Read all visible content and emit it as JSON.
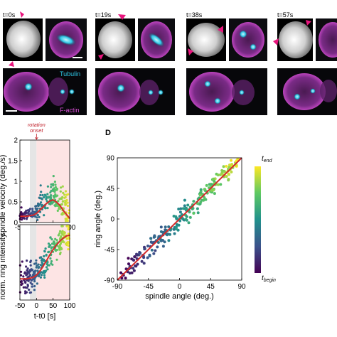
{
  "microscopy": {
    "timepoints": [
      {
        "label": "t=0s"
      },
      {
        "label": "t=19s"
      },
      {
        "label": "t=38s"
      },
      {
        "label": "t=57s"
      }
    ],
    "channels": [
      {
        "label": "Tubulin",
        "color": "#2ec8e6"
      },
      {
        "label": "F-actin",
        "color": "#d94fd6"
      }
    ],
    "arrow_color": "#e8157d"
  },
  "chart_data": [
    {
      "type": "scatter",
      "id": "spindle-velocity",
      "ylabel": "spindle velocity (deg./s)",
      "annotation": {
        "text": "rotation onset",
        "x": 0
      },
      "xlim": [
        -50,
        100
      ],
      "ylim": [
        0,
        2
      ],
      "xticks": [
        -50,
        0,
        50,
        100
      ],
      "yticks": [
        0,
        0.5,
        1,
        1.5,
        2
      ],
      "ytick_labels": [
        "0",
        "0.5",
        "1",
        "1.5",
        "2"
      ],
      "pre_shade_range": [
        -20,
        0
      ],
      "post_shade_range": [
        0,
        100
      ],
      "fit_line": {
        "x": [
          -50,
          -30,
          -10,
          0,
          10,
          20,
          30,
          40,
          50,
          60,
          70,
          80,
          90,
          100
        ],
        "y": [
          0.15,
          0.15,
          0.18,
          0.22,
          0.3,
          0.38,
          0.46,
          0.52,
          0.55,
          0.5,
          0.42,
          0.3,
          0.2,
          0.1
        ]
      }
    },
    {
      "type": "scatter",
      "id": "ring-intensity",
      "ylabel": "norm. ring intensity",
      "xlabel": "t-t0 [s]",
      "xlim": [
        -50,
        100
      ],
      "ylim": [
        0,
        1
      ],
      "xticks": [
        -50,
        0,
        50,
        100
      ],
      "pre_shade_range": [
        -20,
        0
      ],
      "post_shade_range": [
        0,
        100
      ],
      "fit_line": {
        "x": [
          -50,
          -30,
          -10,
          0,
          10,
          20,
          30,
          40,
          50,
          60,
          70,
          80,
          90,
          100
        ],
        "y": [
          0.28,
          0.28,
          0.3,
          0.33,
          0.38,
          0.45,
          0.52,
          0.6,
          0.67,
          0.73,
          0.78,
          0.82,
          0.85,
          0.86
        ]
      }
    },
    {
      "type": "scatter",
      "id": "ring-vs-spindle",
      "panel_label": "D",
      "xlabel": "spindle angle (deg.)",
      "ylabel": "ring angle (deg.)",
      "xlim": [
        -90,
        90
      ],
      "ylim": [
        -90,
        90
      ],
      "xticks": [
        -90,
        -45,
        0,
        45,
        90
      ],
      "yticks": [
        -90,
        -45,
        0,
        45,
        90
      ],
      "identity_line": {
        "x": [
          -90,
          90
        ],
        "y": [
          -90,
          90
        ],
        "color": "#d42a2a"
      },
      "colorbar": {
        "top_label": "t",
        "top_sub": "end",
        "bottom_label": "t",
        "bottom_sub": "begin"
      }
    }
  ]
}
